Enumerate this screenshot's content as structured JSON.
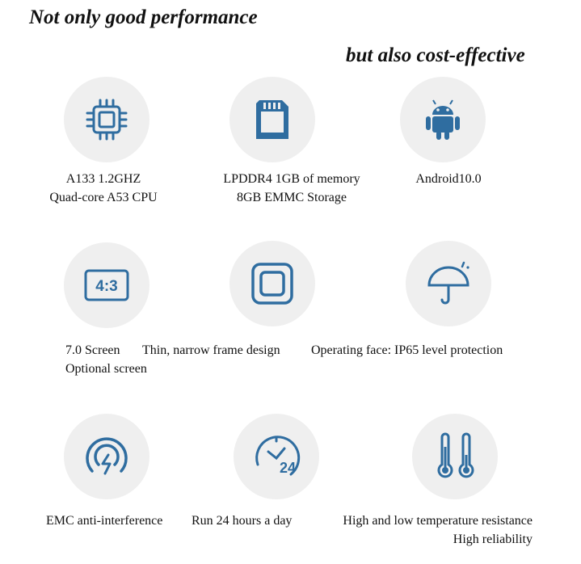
{
  "headline": {
    "line1": "Not only good performance",
    "line2": "but also cost-effective"
  },
  "accent": "#2f6da0",
  "features": [
    {
      "icon": "cpu-chip-icon",
      "lines": [
        "A133 1.2GHZ",
        "Quad-core A53 CPU"
      ]
    },
    {
      "icon": "memory-card-icon",
      "lines": [
        "LPDDR4 1GB of memory",
        "8GB EMMC Storage"
      ]
    },
    {
      "icon": "android-icon",
      "lines": [
        "Android10.0"
      ]
    },
    {
      "icon": "aspect-ratio-icon",
      "label": "4:3",
      "lines": [
        "7.0 Screen",
        "Optional screen"
      ]
    },
    {
      "icon": "narrow-frame-icon",
      "lines": [
        "Thin, narrow frame design"
      ]
    },
    {
      "icon": "umbrella-icon",
      "lines": [
        "Operating face: IP65 level protection"
      ]
    },
    {
      "icon": "emc-shield-icon",
      "lines": [
        "EMC anti-interference"
      ]
    },
    {
      "icon": "clock-24-icon",
      "label": "24",
      "lines": [
        "Run 24 hours a day"
      ]
    },
    {
      "icon": "thermometer-icon",
      "lines": [
        "High and low temperature resistance",
        "High reliability"
      ]
    }
  ]
}
